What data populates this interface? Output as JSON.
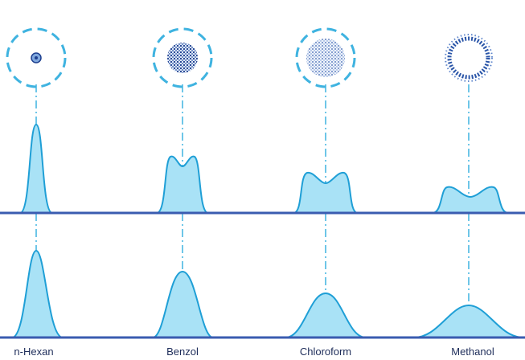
{
  "labels": [
    "n-Hexan",
    "Benzol",
    "Chloroform",
    "Methanol"
  ]
}
